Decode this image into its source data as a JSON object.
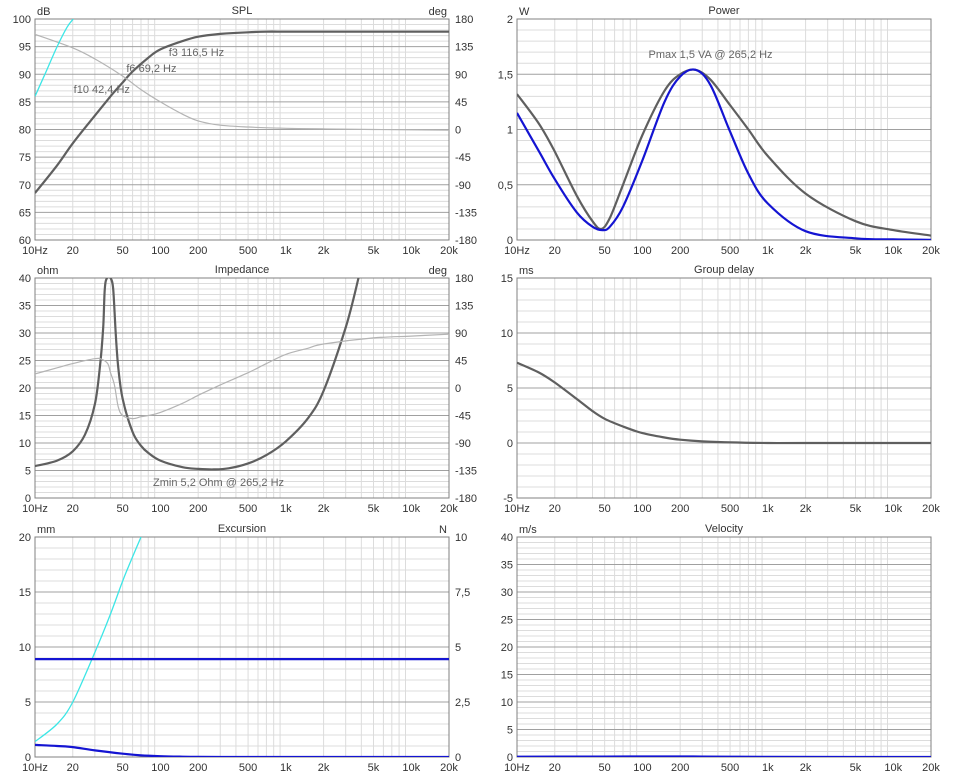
{
  "x_ticks": [
    "10Hz",
    "20",
    "50",
    "100",
    "200",
    "500",
    "1k",
    "2k",
    "5k",
    "10k",
    "20k"
  ],
  "colors": {
    "dark": "#5f5f5f",
    "light": "#b4b4b4",
    "blue": "#1414d2",
    "cyan": "#3ce6e6",
    "grid_major": "#a0a0a0",
    "grid_minor": "#dcdcdc"
  },
  "chart_data": [
    {
      "type": "line",
      "id": "spl",
      "title": "SPL",
      "ylabel": "dB",
      "y2label": "deg",
      "x_scale": "log",
      "xlim": [
        10,
        20000
      ],
      "ylim": [
        60,
        100
      ],
      "y2lim": [
        -180,
        180
      ],
      "yticks": [
        "60",
        "65",
        "70",
        "75",
        "80",
        "85",
        "90",
        "95",
        "100"
      ],
      "y2ticks": [
        "-180",
        "-135",
        "-90",
        "-45",
        "0",
        "45",
        "90",
        "135",
        "180"
      ],
      "series": [
        {
          "color": "#5f5f5f",
          "axis": "left",
          "x": [
            10,
            15,
            20,
            30,
            40,
            50,
            60,
            80,
            100,
            150,
            200,
            300,
            500,
            700,
            1000,
            2000,
            5000,
            10000,
            20000
          ],
          "y": [
            68.5,
            73.5,
            77.5,
            82.5,
            86,
            88.5,
            90.5,
            93,
            94.5,
            96,
            96.8,
            97.3,
            97.6,
            97.7,
            97.7,
            97.7,
            97.7,
            97.7,
            97.7
          ]
        },
        {
          "color": "#b4b4b4",
          "axis": "right",
          "x": [
            10,
            20,
            30,
            50,
            70,
            100,
            150,
            200,
            300,
            500,
            1000,
            2000,
            5000,
            20000
          ],
          "y": [
            155,
            133,
            115,
            87,
            65,
            45,
            25,
            14,
            7,
            4,
            2,
            1,
            0,
            -1
          ]
        },
        {
          "color": "#3ce6e6",
          "axis": "left",
          "x": [
            10,
            12,
            15,
            18,
            20.2
          ],
          "y": [
            86,
            90,
            95,
            98.5,
            100
          ]
        }
      ],
      "annotations": [
        "f3 116,5 Hz",
        "f6 69,2 Hz",
        "f10 42,4 Hz"
      ]
    },
    {
      "type": "line",
      "id": "power",
      "title": "Power",
      "ylabel": "W",
      "x_scale": "log",
      "xlim": [
        10,
        20000
      ],
      "ylim": [
        0,
        2
      ],
      "yticks": [
        "0",
        "0,5",
        "1",
        "1,5",
        "2"
      ],
      "series": [
        {
          "color": "#5f5f5f",
          "axis": "left",
          "x": [
            10,
            15,
            20,
            30,
            40,
            47,
            55,
            70,
            100,
            150,
            200,
            265,
            350,
            500,
            700,
            1000,
            2000,
            5000,
            10000,
            20000
          ],
          "y": [
            1.32,
            1.05,
            0.8,
            0.4,
            0.17,
            0.1,
            0.2,
            0.5,
            0.95,
            1.35,
            1.5,
            1.54,
            1.45,
            1.22,
            1.0,
            0.76,
            0.42,
            0.17,
            0.09,
            0.04
          ]
        },
        {
          "color": "#1414d2",
          "axis": "left",
          "x": [
            10,
            15,
            20,
            30,
            40,
            48,
            55,
            70,
            100,
            150,
            200,
            265,
            350,
            500,
            700,
            1000,
            2000,
            5000,
            10000,
            20000
          ],
          "y": [
            1.15,
            0.8,
            0.55,
            0.25,
            0.12,
            0.09,
            0.12,
            0.3,
            0.72,
            1.25,
            1.48,
            1.54,
            1.4,
            0.98,
            0.6,
            0.33,
            0.08,
            0.015,
            0.005,
            0.002
          ]
        }
      ],
      "annotations": [
        "Pmax 1,5 VA  @ 265,2 Hz"
      ]
    },
    {
      "type": "line",
      "id": "impedance",
      "title": "Impedance",
      "ylabel": "ohm",
      "y2label": "deg",
      "x_scale": "log",
      "xlim": [
        10,
        20000
      ],
      "ylim": [
        0,
        40
      ],
      "y2lim": [
        -180,
        180
      ],
      "yticks": [
        "0",
        "5",
        "10",
        "15",
        "20",
        "25",
        "30",
        "35",
        "40"
      ],
      "y2ticks": [
        "-180",
        "-135",
        "-90",
        "-45",
        "0",
        "45",
        "90",
        "135",
        "180"
      ],
      "series": [
        {
          "color": "#5f5f5f",
          "axis": "left",
          "x": [
            10,
            15,
            20,
            25,
            30,
            33,
            35,
            36,
            37.5,
            40,
            42,
            44,
            46,
            50,
            60,
            70,
            80,
            100,
            150,
            200,
            265,
            350,
            500,
            700,
            1000,
            1500,
            2000,
            3000,
            3800
          ],
          "y": [
            5.8,
            6.8,
            8.5,
            11.5,
            17,
            24,
            31,
            38,
            40,
            40,
            38,
            30,
            24,
            18,
            12,
            9.5,
            8.2,
            6.8,
            5.6,
            5.3,
            5.2,
            5.4,
            6.3,
            7.8,
            10.3,
            14.5,
            19.5,
            31,
            40
          ]
        },
        {
          "color": "#b4b4b4",
          "axis": "right",
          "x": [
            10,
            15,
            20,
            30,
            34,
            38,
            40,
            43,
            46,
            50,
            60,
            70,
            80,
            100,
            150,
            200,
            300,
            500,
            700,
            1000,
            1500,
            2000,
            5000,
            10000,
            20000
          ],
          "y": [
            23,
            33,
            40,
            48,
            47,
            40,
            25,
            5,
            -30,
            -45,
            -50,
            -47,
            -45,
            -40,
            -25,
            -12,
            5,
            25,
            40,
            55,
            65,
            72,
            82,
            85,
            88
          ]
        }
      ],
      "annotations": [
        "Zmin 5,2 Ohm @ 265,2 Hz"
      ]
    },
    {
      "type": "line",
      "id": "group-delay",
      "title": "Group delay",
      "ylabel": "ms",
      "x_scale": "log",
      "xlim": [
        10,
        20000
      ],
      "ylim": [
        -5,
        15
      ],
      "yticks": [
        "-5",
        "0",
        "5",
        "10",
        "15"
      ],
      "series": [
        {
          "color": "#5f5f5f",
          "axis": "left",
          "x": [
            10,
            15,
            20,
            30,
            40,
            50,
            70,
            100,
            150,
            200,
            300,
            500,
            1000,
            2000,
            20000
          ],
          "y": [
            7.3,
            6.4,
            5.5,
            4.0,
            2.9,
            2.2,
            1.5,
            0.9,
            0.5,
            0.3,
            0.15,
            0.05,
            0,
            0,
            0
          ]
        }
      ]
    },
    {
      "type": "line",
      "id": "excursion",
      "title": "Excursion",
      "ylabel": "mm",
      "y2label": "N",
      "x_scale": "log",
      "xlim": [
        10,
        20000
      ],
      "ylim": [
        0,
        20
      ],
      "y2lim": [
        0,
        10
      ],
      "yticks": [
        "0",
        "5",
        "10",
        "15",
        "20"
      ],
      "y2ticks": [
        "0",
        "2,5",
        "5",
        "7,5",
        "10"
      ],
      "series": [
        {
          "color": "#3ce6e6",
          "axis": "left",
          "x": [
            10,
            15,
            20,
            30,
            40,
            50,
            60,
            70
          ],
          "y": [
            1.4,
            3.0,
            5.0,
            9.5,
            13.0,
            16.0,
            18.2,
            20
          ]
        },
        {
          "color": "#1414d2",
          "axis": "left",
          "x": [
            10,
            20000
          ],
          "y": [
            8.9,
            8.9
          ]
        },
        {
          "color": "#1414d2",
          "axis": "left",
          "x": [
            10,
            15,
            20,
            30,
            50,
            70,
            100,
            150,
            200,
            300,
            500,
            1000,
            20000
          ],
          "y": [
            1.1,
            1.0,
            0.9,
            0.6,
            0.3,
            0.15,
            0.07,
            0.03,
            0.01,
            0,
            0,
            0,
            0
          ]
        }
      ]
    },
    {
      "type": "line",
      "id": "velocity",
      "title": "Velocity",
      "ylabel": "m/s",
      "x_scale": "log",
      "xlim": [
        10,
        20000
      ],
      "ylim": [
        0,
        40
      ],
      "yticks": [
        "0",
        "5",
        "10",
        "15",
        "20",
        "25",
        "30",
        "35",
        "40"
      ],
      "series": [
        {
          "color": "#1414d2",
          "axis": "left",
          "x": [
            10,
            50,
            100,
            200,
            300,
            500,
            1000,
            20000
          ],
          "y": [
            0.05,
            0.08,
            0.1,
            0.1,
            0.08,
            0.05,
            0.02,
            0
          ]
        }
      ]
    }
  ]
}
